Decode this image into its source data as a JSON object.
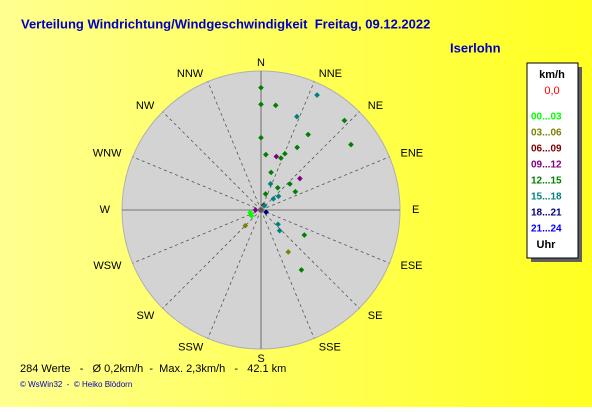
{
  "chart_data": {
    "type": "polar-scatter",
    "title": "Verteilung Windrichtung/Windgeschwindigkeit  Freitag, 09.12.2022",
    "subtitle": "Iserlohn",
    "directions": [
      "N",
      "NNE",
      "NE",
      "ENE",
      "E",
      "ESE",
      "SE",
      "SSE",
      "S",
      "SSW",
      "SW",
      "WSW",
      "W",
      "WNW",
      "NW",
      "NNW"
    ],
    "rlim": [
      0,
      2.5
    ],
    "legend": {
      "title": "km/h",
      "calm": "0,0",
      "unit": "Uhr"
    },
    "series": [
      {
        "name": "00...03",
        "color": "#00ff00",
        "direction": [
          238,
          257
        ],
        "speed": [
          0.2,
          0.2
        ]
      },
      {
        "name": "03...06",
        "color": "#808000",
        "direction": [
          147,
          225
        ],
        "speed": [
          0.9,
          0.4
        ]
      },
      {
        "name": "06...09",
        "color": "#800000",
        "direction": [
          30
        ],
        "speed": [
          0.1
        ]
      },
      {
        "name": "09...12",
        "color": "#800080",
        "direction": [
          16,
          51,
          270
        ],
        "speed": [
          1.0,
          0.9,
          0.1
        ]
      },
      {
        "name": "12...15",
        "color": "#008000",
        "direction": [
          43,
          54,
          32,
          0,
          0,
          8,
          0,
          5,
          21,
          30,
          23,
          48,
          15,
          16,
          62,
          120,
          146,
          37
        ],
        "speed": [
          2.2,
          2.0,
          1.6,
          2.2,
          1.9,
          1.9,
          1.3,
          1.0,
          1.0,
          1.3,
          1.1,
          0.7,
          0.7,
          0.3,
          0.7,
          0.9,
          1.3,
          0.5
        ]
      },
      {
        "name": "15...18",
        "color": "#008080",
        "direction": [
          26,
          21,
          20,
          52,
          138,
          130,
          39,
          48
        ],
        "speed": [
          2.3,
          1.8,
          0.5,
          0.4,
          0.5,
          0.4,
          0.1,
          0.3
        ]
      },
      {
        "name": "18...21",
        "color": "#000080",
        "direction": [
          113
        ],
        "speed": [
          0.1
        ]
      },
      {
        "name": "21...24",
        "color": "#0000ff",
        "direction": [],
        "speed": []
      }
    ],
    "stats": "284 Werte   -   Ø 0,2km/h  -  Max. 2,3km/h   -   42.1 km",
    "credit": "© WsWin32  -  © Heiko Blödorn"
  }
}
